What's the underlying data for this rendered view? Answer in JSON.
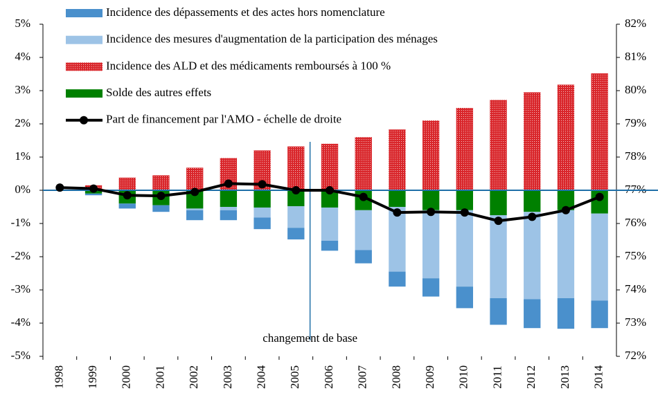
{
  "chart_data": {
    "type": "bar",
    "annotation": "changement de base",
    "categories": [
      "1998",
      "1999",
      "2000",
      "2001",
      "2002",
      "2003",
      "2004",
      "2005",
      "2006",
      "2007",
      "2008",
      "2009",
      "2010",
      "2011",
      "2012",
      "2013",
      "2014"
    ],
    "series": [
      {
        "name": "Incidence des dépassements et des actes hors nomenclature",
        "color": "#4a90cc",
        "values": [
          0,
          -0.05,
          -0.15,
          -0.2,
          -0.3,
          -0.3,
          -0.35,
          -0.35,
          -0.3,
          -0.4,
          -0.45,
          -0.55,
          -0.65,
          -0.8,
          -0.87,
          -0.92,
          -0.83
        ]
      },
      {
        "name": "Incidence des mesures d'augmentation de la participation des ménages",
        "color": "#9dc3e6",
        "values": [
          0,
          0,
          0,
          0,
          -0.05,
          -0.1,
          -0.3,
          -0.65,
          -1.0,
          -1.2,
          -1.95,
          -2.05,
          -2.3,
          -2.5,
          -2.63,
          -2.65,
          -2.62
        ]
      },
      {
        "name": "Incidence des ALD et des médicaments remboursés à 100 %",
        "color": "#d9262b",
        "values": [
          0,
          0.15,
          0.38,
          0.45,
          0.68,
          0.97,
          1.2,
          1.32,
          1.4,
          1.6,
          1.83,
          2.1,
          2.48,
          2.72,
          2.95,
          3.18,
          3.52
        ]
      },
      {
        "name": "Solde des autres effets",
        "color": "#008000",
        "values": [
          0,
          -0.1,
          -0.4,
          -0.45,
          -0.55,
          -0.5,
          -0.52,
          -0.48,
          -0.52,
          -0.6,
          -0.5,
          -0.6,
          -0.6,
          -0.75,
          -0.65,
          -0.6,
          -0.7
        ]
      },
      {
        "name": "Part de financement par l'AMO - échelle de droite",
        "color": "#000000",
        "type": "line",
        "axis": "y2",
        "values": [
          77.08,
          77.05,
          76.85,
          76.83,
          76.95,
          77.2,
          77.18,
          77.0,
          77.0,
          76.8,
          76.33,
          76.35,
          76.33,
          76.08,
          76.2,
          76.4,
          76.8
        ]
      }
    ],
    "ylim": [
      -5,
      5
    ],
    "yticks": [
      {
        "value": -5,
        "label": "-5%"
      },
      {
        "value": -4,
        "label": "-4%"
      },
      {
        "value": -3,
        "label": "-3%"
      },
      {
        "value": -2,
        "label": "-2%"
      },
      {
        "value": -1,
        "label": "-1%"
      },
      {
        "value": 0,
        "label": "0%"
      },
      {
        "value": 1,
        "label": "1%"
      },
      {
        "value": 2,
        "label": "2%"
      },
      {
        "value": 3,
        "label": "3%"
      },
      {
        "value": 4,
        "label": "4%"
      },
      {
        "value": 5,
        "label": "5%"
      }
    ],
    "y2lim": [
      72,
      82
    ],
    "y2ticks": [
      {
        "value": 72,
        "label": "72%"
      },
      {
        "value": 73,
        "label": "73%"
      },
      {
        "value": 74,
        "label": "74%"
      },
      {
        "value": 75,
        "label": "75%"
      },
      {
        "value": 76,
        "label": "76%"
      },
      {
        "value": 77,
        "label": "77%"
      },
      {
        "value": 78,
        "label": "78%"
      },
      {
        "value": 79,
        "label": "79%"
      },
      {
        "value": 80,
        "label": "80%"
      },
      {
        "value": 81,
        "label": "81%"
      },
      {
        "value": 82,
        "label": "82%"
      }
    ],
    "grid": false,
    "legend": "top-left"
  }
}
